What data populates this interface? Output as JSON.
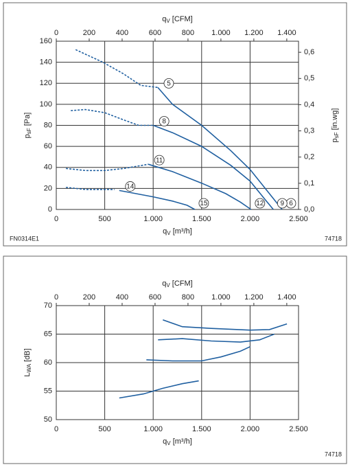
{
  "chart_data": [
    {
      "type": "line",
      "grid": true,
      "color": "#1f5fa0",
      "xlim": [
        0,
        2500
      ],
      "xticks": [
        0,
        500,
        {
          "value": 1000,
          "label": "1.000"
        },
        {
          "value": 1500,
          "label": "1.500"
        },
        {
          "value": 2000,
          "label": "2.000"
        },
        {
          "value": 2500,
          "label": "2.500"
        }
      ],
      "x2lim": [
        0,
        1471.4
      ],
      "x2ticks": [
        0,
        200,
        400,
        600,
        800,
        {
          "value": 1000,
          "label": "1.000"
        },
        {
          "value": 1200,
          "label": "1.200"
        },
        {
          "value": 1400,
          "label": "1.400"
        }
      ],
      "ylim": [
        0,
        160
      ],
      "yticks": [
        0,
        20,
        40,
        60,
        80,
        100,
        120,
        140,
        160
      ],
      "y2lim": [
        0,
        0.6423
      ],
      "y2ticks": [
        {
          "value": 0,
          "label": "0,0"
        },
        {
          "value": 0.1,
          "label": "0,1"
        },
        {
          "value": 0.2,
          "label": "0,2"
        },
        {
          "value": 0.3,
          "label": "0,3"
        },
        {
          "value": 0.4,
          "label": "0,4"
        },
        {
          "value": 0.5,
          "label": "0,5"
        },
        {
          "value": 0.6,
          "label": "0,6"
        }
      ],
      "xlabel": {
        "symbol": "q",
        "sub": "V",
        "unit": " [m³/h]"
      },
      "x2label": {
        "symbol": "q",
        "sub": "V",
        "unit": " [CFM]"
      },
      "ylabel": {
        "symbol": "p",
        "sub": "sF",
        "unit": " [Pa]"
      },
      "y2label": {
        "symbol": "p",
        "sub": "sF",
        "unit": " [in.wg]"
      },
      "annotations": [
        "FN0314E1",
        "74718"
      ],
      "series": [
        {
          "dash": true,
          "x": [
            200,
            480,
            694,
            871,
            1048
          ],
          "values": [
            152,
            140,
            129,
            118,
            116
          ]
        },
        {
          "labels": [
            "5",
            "6"
          ],
          "x": [
            1048,
            1200,
            1500,
            1800,
            2000,
            2200,
            2330
          ],
          "values": [
            116,
            100,
            80,
            56,
            38,
            15,
            0
          ]
        },
        {
          "dash": true,
          "x": [
            150,
            300,
            500,
            700,
            850,
            1000
          ],
          "values": [
            94,
            95,
            92,
            85,
            80,
            80
          ]
        },
        {
          "labels": [
            "8",
            "9"
          ],
          "x": [
            1000,
            1200,
            1500,
            1800,
            2000,
            2150,
            2240
          ],
          "values": [
            80,
            73,
            60,
            42,
            27,
            10,
            0
          ]
        },
        {
          "dash": true,
          "x": [
            100,
            300,
            500,
            700,
            950
          ],
          "values": [
            39,
            37,
            37,
            39,
            43
          ]
        },
        {
          "labels": [
            "11",
            "12"
          ],
          "x": [
            950,
            1200,
            1500,
            1750,
            1900,
            2010
          ],
          "values": [
            43,
            36,
            25,
            15,
            7,
            0
          ]
        },
        {
          "dash": true,
          "x": [
            100,
            300,
            600
          ],
          "values": [
            21,
            19,
            19
          ]
        },
        {
          "labels": [
            "14",
            "15"
          ],
          "x": [
            650,
            1000,
            1200,
            1350,
            1430
          ],
          "values": [
            18,
            12,
            8,
            4,
            0
          ]
        }
      ]
    },
    {
      "type": "line",
      "grid": true,
      "color": "#1f5fa0",
      "xlim": [
        0,
        2500
      ],
      "xticks": [
        0,
        500,
        {
          "value": 1000,
          "label": "1.000"
        },
        {
          "value": 1500,
          "label": "1.500"
        },
        {
          "value": 2000,
          "label": "2.000"
        },
        {
          "value": 2500,
          "label": "2.500"
        }
      ],
      "x2lim": [
        0,
        1471.4
      ],
      "x2ticks": [
        0,
        200,
        400,
        600,
        800,
        {
          "value": 1000,
          "label": "1.000"
        },
        {
          "value": 1200,
          "label": "1.200"
        },
        {
          "value": 1400,
          "label": "1.400"
        }
      ],
      "ylim": [
        50,
        70
      ],
      "yticks": [
        50,
        55,
        60,
        65,
        70
      ],
      "xlabel": {
        "symbol": "q",
        "sub": "V",
        "unit": " [m³/h]"
      },
      "x2label": {
        "symbol": "q",
        "sub": "V",
        "unit": " [CFM]"
      },
      "ylabel": {
        "symbol": "L",
        "sub": "WA",
        "unit": " [dB]"
      },
      "annotations": [
        "74718"
      ],
      "series": [
        {
          "x": [
            1100,
            1300,
            1600,
            2000,
            2200,
            2380
          ],
          "values": [
            67.5,
            66.3,
            66,
            65.7,
            65.8,
            66.8
          ]
        },
        {
          "x": [
            1050,
            1300,
            1600,
            1900,
            2100,
            2250
          ],
          "values": [
            64,
            64.2,
            63.8,
            63.6,
            64,
            65
          ]
        },
        {
          "x": [
            930,
            1200,
            1500,
            1700,
            1900,
            2000
          ],
          "values": [
            60.5,
            60.3,
            60.3,
            61,
            62,
            62.8
          ]
        },
        {
          "x": [
            650,
            900,
            1100,
            1300,
            1470
          ],
          "values": [
            53.8,
            54.5,
            55.5,
            56.3,
            56.8
          ]
        }
      ]
    }
  ]
}
